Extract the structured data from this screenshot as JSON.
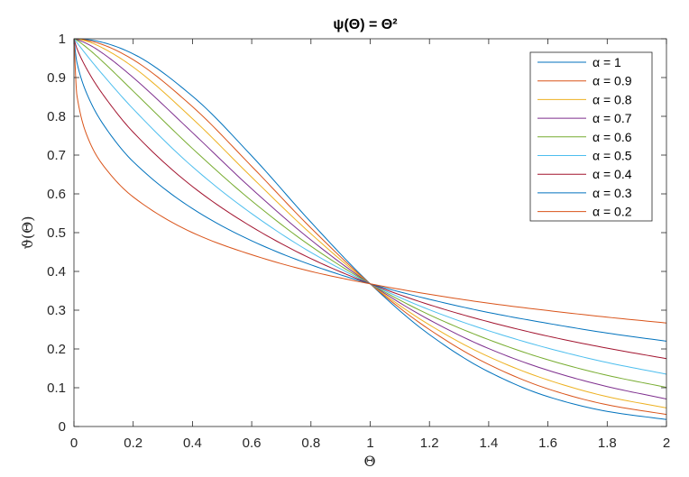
{
  "chart_data": {
    "type": "line",
    "title": "ψ(Θ) = Θ²",
    "xlabel": "Θ",
    "ylabel": "ϑ(Θ)",
    "xlim": [
      0,
      2
    ],
    "ylim": [
      0,
      1
    ],
    "xticks": [
      "0",
      "0.2",
      "0.4",
      "0.6",
      "0.8",
      "1",
      "1.2",
      "1.4",
      "1.6",
      "1.8",
      "2"
    ],
    "yticks": [
      "0",
      "0.1",
      "0.2",
      "0.3",
      "0.4",
      "0.5",
      "0.6",
      "0.7",
      "0.8",
      "0.9",
      "1"
    ],
    "grid": false,
    "legend_position": "top-right",
    "x": [
      0,
      0.01,
      0.05,
      0.1,
      0.2,
      0.4,
      0.6,
      0.8,
      1,
      1.2,
      1.4,
      1.6,
      1.8,
      2
    ],
    "series": [
      {
        "name": "α = 1",
        "color": "#0072BD",
        "values": [
          1,
          0.9999,
          0.9975,
          0.99,
          0.961,
          0.852,
          0.698,
          0.527,
          0.368,
          0.237,
          0.141,
          0.077,
          0.039,
          0.018
        ]
      },
      {
        "name": "α = 0.9",
        "color": "#D95319",
        "values": [
          1,
          0.9997,
          0.995,
          0.984,
          0.946,
          0.825,
          0.671,
          0.512,
          0.368,
          0.25,
          0.16,
          0.097,
          0.056,
          0.031
        ]
      },
      {
        "name": "α = 0.8",
        "color": "#EDB120",
        "values": [
          1,
          0.9994,
          0.992,
          0.975,
          0.927,
          0.794,
          0.643,
          0.497,
          0.368,
          0.262,
          0.18,
          0.12,
          0.077,
          0.048
        ]
      },
      {
        "name": "α = 0.7",
        "color": "#7E2F8E",
        "values": [
          1,
          0.998,
          0.985,
          0.961,
          0.9,
          0.758,
          0.613,
          0.481,
          0.368,
          0.275,
          0.201,
          0.145,
          0.103,
          0.071
        ]
      },
      {
        "name": "α = 0.6",
        "color": "#77AC30",
        "values": [
          1,
          0.996,
          0.973,
          0.939,
          0.865,
          0.717,
          0.582,
          0.465,
          0.368,
          0.288,
          0.224,
          0.172,
          0.132,
          0.101
        ]
      },
      {
        "name": "α = 0.5",
        "color": "#4DBEEE",
        "values": [
          1,
          0.99,
          0.951,
          0.905,
          0.819,
          0.67,
          0.549,
          0.449,
          0.368,
          0.301,
          0.247,
          0.202,
          0.165,
          0.135
        ]
      },
      {
        "name": "α = 0.4",
        "color": "#A2142F",
        "values": [
          1,
          0.975,
          0.913,
          0.854,
          0.759,
          0.619,
          0.515,
          0.433,
          0.368,
          0.314,
          0.27,
          0.233,
          0.202,
          0.175
        ]
      },
      {
        "name": "α = 0.3",
        "color": "#0072BD",
        "values": [
          1,
          0.939,
          0.847,
          0.778,
          0.683,
          0.562,
          0.479,
          0.417,
          0.368,
          0.328,
          0.294,
          0.266,
          0.241,
          0.22
        ]
      },
      {
        "name": "α = 0.2",
        "color": "#D95319",
        "values": [
          1,
          0.854,
          0.739,
          0.672,
          0.592,
          0.5,
          0.443,
          0.4,
          0.368,
          0.341,
          0.318,
          0.299,
          0.282,
          0.267
        ]
      }
    ]
  }
}
